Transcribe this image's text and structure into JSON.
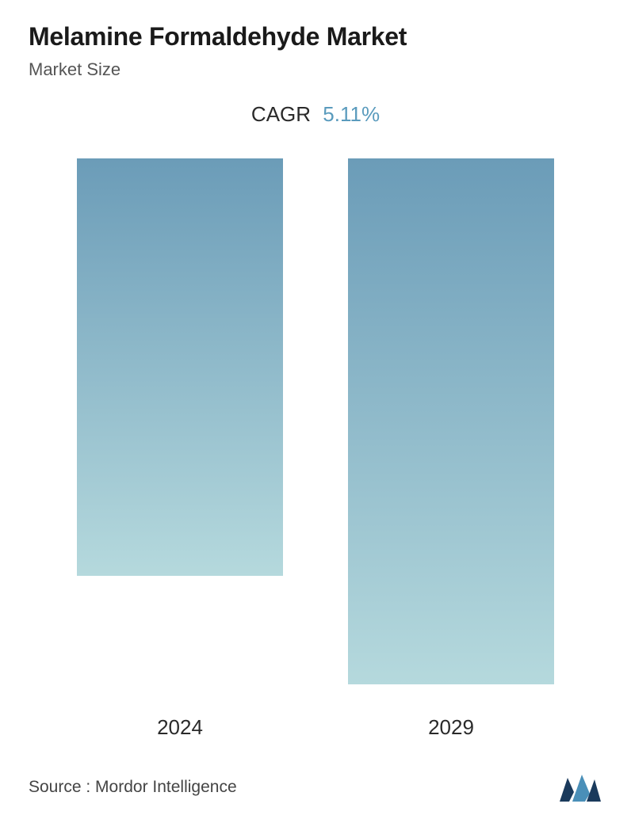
{
  "title": "Melamine Formaldehyde Market",
  "subtitle": "Market Size",
  "cagr": {
    "label": "CAGR",
    "value": "5.11%",
    "value_color": "#5a9bbd"
  },
  "chart": {
    "type": "bar",
    "bars": [
      {
        "label": "2024",
        "height_pct": 77
      },
      {
        "label": "2029",
        "height_pct": 97
      }
    ],
    "bar_gradient_top": "#6b9cb8",
    "bar_gradient_bottom": "#b5d9dd",
    "background_color": "#ffffff"
  },
  "footer": {
    "source": "Source :  Mordor Intelligence",
    "logo_color_1": "#1a3a5c",
    "logo_color_2": "#4a8fb8"
  },
  "typography": {
    "title_fontsize": 32,
    "subtitle_fontsize": 22,
    "cagr_fontsize": 26,
    "label_fontsize": 26,
    "source_fontsize": 21
  }
}
